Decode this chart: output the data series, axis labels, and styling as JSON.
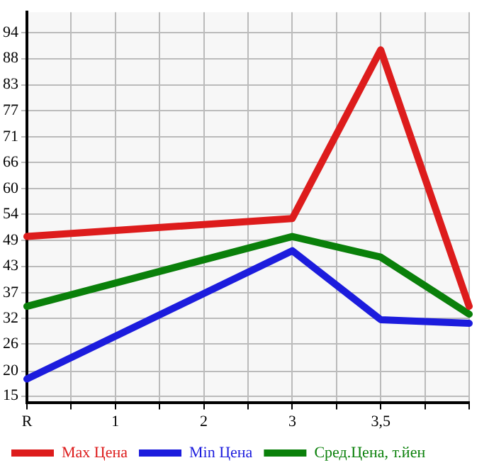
{
  "chart_data": {
    "type": "line",
    "categories": [
      "R",
      null,
      "1",
      null,
      "2",
      null,
      "3",
      null,
      "3,5",
      null,
      null
    ],
    "series": [
      {
        "name": "Max Цена",
        "color": "#dd1c1c",
        "values": [
          49.7,
          null,
          null,
          null,
          null,
          null,
          53.6,
          null,
          90.3,
          null,
          34.5
        ]
      },
      {
        "name": "Min Цена",
        "color": "#1c1cdd",
        "values": [
          18.7,
          null,
          null,
          null,
          null,
          null,
          46.6,
          null,
          31.6,
          null,
          30.8
        ]
      },
      {
        "name": "Сред.Цена, т.йен",
        "color": "#0a800a",
        "values": [
          34.5,
          null,
          null,
          null,
          null,
          null,
          49.7,
          null,
          45.2,
          null,
          32.8
        ]
      }
    ],
    "ylim": [
      13.6,
      98.5
    ],
    "yticks": [
      15,
      {
        "value": 20.4,
        "label": "20"
      },
      {
        "value": 26.3,
        "label": "26"
      },
      {
        "value": 31.9,
        "label": "32"
      },
      {
        "value": 37.4,
        "label": "37"
      },
      {
        "value": 43.2,
        "label": "43"
      },
      {
        "value": 48.9,
        "label": "49"
      },
      {
        "value": 54.5,
        "label": "54"
      },
      {
        "value": 60.1,
        "label": "60"
      },
      {
        "value": 65.8,
        "label": "66"
      },
      {
        "value": 71.4,
        "label": "71"
      },
      {
        "value": 77.1,
        "label": "77"
      },
      {
        "value": 82.7,
        "label": "83"
      },
      {
        "value": 88.4,
        "label": "88"
      },
      94
    ],
    "grid": true,
    "legend": "bottom",
    "marker": "none",
    "line_style": "solid"
  }
}
